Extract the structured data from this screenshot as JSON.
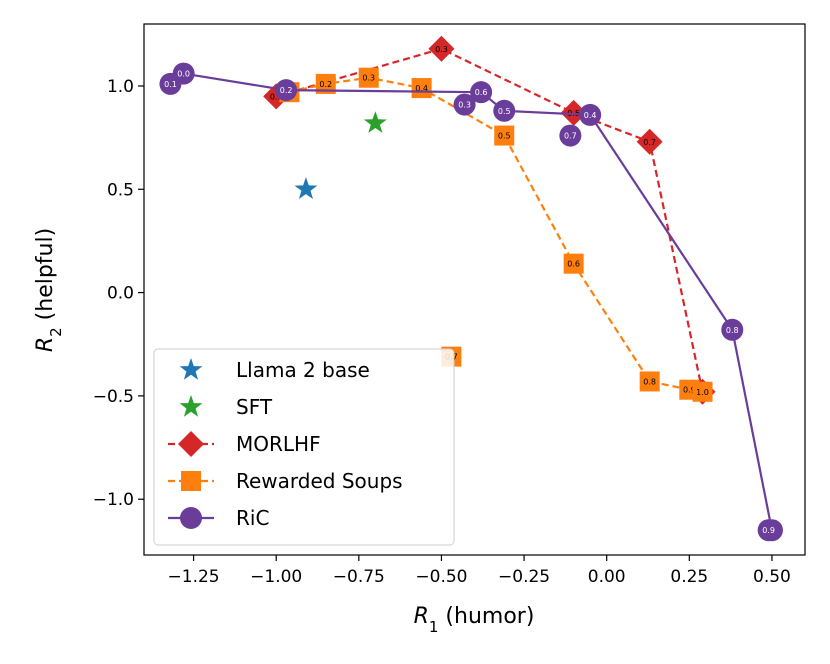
{
  "chart_data": {
    "type": "scatter",
    "title": "",
    "xlabel": "R_1 (humor)",
    "ylabel": "R_2 (helpful)",
    "xlabel_parts": {
      "var": "R",
      "sub": "1",
      "rest": " (humor)"
    },
    "ylabel_parts": {
      "var": "R",
      "sub": "2",
      "rest": " (helpful)"
    },
    "xlim": [
      -1.4,
      0.6
    ],
    "ylim": [
      -1.27,
      1.3
    ],
    "xticks": [
      -1.25,
      -1.0,
      -0.75,
      -0.5,
      -0.25,
      0.0,
      0.25,
      0.5
    ],
    "xtick_labels": [
      "−1.25",
      "−1.00",
      "−0.75",
      "−0.50",
      "−0.25",
      "0.00",
      "0.25",
      "0.50"
    ],
    "yticks": [
      -1.0,
      -0.5,
      0.0,
      0.5,
      1.0
    ],
    "ytick_labels": [
      "−1.0",
      "−0.5",
      "0.0",
      "0.5",
      "1.0"
    ],
    "grid": false,
    "legend_position": "lower-left",
    "series": [
      {
        "name": "Llama 2 base",
        "marker": "star",
        "color": "#1f77b4",
        "linestyle": "none",
        "points": [
          {
            "x": -0.91,
            "y": 0.5,
            "label": ""
          }
        ]
      },
      {
        "name": "SFT",
        "marker": "star",
        "color": "#2ca02c",
        "linestyle": "none",
        "points": [
          {
            "x": -0.7,
            "y": 0.82,
            "label": ""
          }
        ]
      },
      {
        "name": "MORLHF",
        "marker": "diamond",
        "color": "#d62728",
        "linestyle": "dashed",
        "label_color": "#000000",
        "points": [
          {
            "x": -1.0,
            "y": 0.95,
            "label": "0.1"
          },
          {
            "x": -0.5,
            "y": 1.18,
            "label": "0.3"
          },
          {
            "x": -0.1,
            "y": 0.87,
            "label": "0.5"
          },
          {
            "x": 0.13,
            "y": 0.73,
            "label": "0.7"
          },
          {
            "x": 0.29,
            "y": -0.48,
            "label": "1.0"
          }
        ]
      },
      {
        "name": "Rewarded Soups",
        "marker": "square",
        "color": "#ff7f0e",
        "linestyle": "dashed",
        "label_color": "#000000",
        "points": [
          {
            "x": -0.96,
            "y": 0.97,
            "label": "0.1"
          },
          {
            "x": -0.85,
            "y": 1.01,
            "label": "0.2"
          },
          {
            "x": -0.72,
            "y": 1.04,
            "label": "0.3"
          },
          {
            "x": -0.56,
            "y": 0.99,
            "label": "0.4"
          },
          {
            "x": -0.31,
            "y": 0.76,
            "label": "0.5"
          },
          {
            "x": -0.1,
            "y": 0.14,
            "label": "0.6"
          },
          {
            "x": 0.13,
            "y": -0.43,
            "label": "0.8"
          },
          {
            "x": 0.25,
            "y": -0.47,
            "label": "0.9"
          },
          {
            "x": 0.29,
            "y": -0.48,
            "label": "1.0"
          }
        ],
        "extra_points": [
          {
            "x": -0.47,
            "y": -0.31,
            "label": "0.7"
          }
        ]
      },
      {
        "name": "RiC",
        "marker": "circle",
        "color": "#6a3d9a",
        "linestyle": "solid",
        "label_color": "#ffffff",
        "points": [
          {
            "x": -1.28,
            "y": 1.06,
            "label": "0.0"
          },
          {
            "x": -0.97,
            "y": 0.98,
            "label": "0.2"
          },
          {
            "x": -0.38,
            "y": 0.97,
            "label": "0.6"
          },
          {
            "x": -0.31,
            "y": 0.88,
            "label": "0.5"
          },
          {
            "x": -0.05,
            "y": 0.86,
            "label": "0.4"
          },
          {
            "x": 0.38,
            "y": -0.18,
            "label": "0.8"
          },
          {
            "x": 0.5,
            "y": -1.15,
            "label": "1.0"
          }
        ],
        "extra_points": [
          {
            "x": -1.32,
            "y": 1.01,
            "label": "0.1"
          },
          {
            "x": -0.43,
            "y": 0.91,
            "label": "0.3"
          },
          {
            "x": -0.11,
            "y": 0.76,
            "label": "0.7"
          },
          {
            "x": 0.49,
            "y": -1.15,
            "label": "0.9"
          }
        ]
      }
    ]
  }
}
